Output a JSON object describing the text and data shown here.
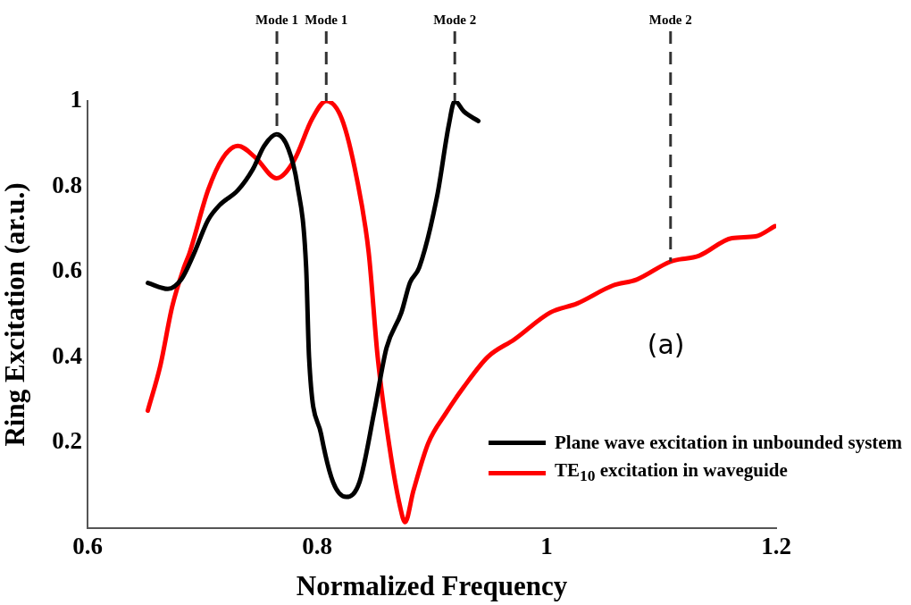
{
  "chart_data": {
    "type": "line",
    "xlabel": "Normalized Frequency",
    "ylabel": "Ring Excitation (ar.u.)",
    "xlim": [
      0.6,
      1.2
    ],
    "xticks": [
      0.6,
      0.8,
      1,
      1.2
    ],
    "ylim": [
      0,
      1
    ],
    "yticks": [
      0.2,
      0.4,
      0.6,
      0.8,
      1
    ],
    "grid": false,
    "legend": "bottom right",
    "marker": "none",
    "line_style": "solid",
    "annotations": [
      "(a)"
    ],
    "ref_lines": [
      {
        "axis": "x",
        "value": 0.765,
        "label": "Mode 1",
        "color": "#333333",
        "line_style": "dashed"
      },
      {
        "axis": "x",
        "value": 0.808,
        "label": "Mode 1",
        "color": "#333333",
        "line_style": "dashed"
      },
      {
        "axis": "x",
        "value": 0.92,
        "label": "Mode 2",
        "color": "#333333",
        "line_style": "dashed"
      },
      {
        "axis": "x",
        "value": 1.108,
        "label": "Mode 2",
        "color": "#333333",
        "line_style": "dashed"
      }
    ],
    "series": [
      {
        "name": "Plane wave excitation in unbounded system",
        "color": "#000000",
        "x": [
          0.6526,
          0.67,
          0.6816,
          0.692,
          0.705,
          0.715,
          0.731,
          0.744,
          0.754,
          0.7646,
          0.775,
          0.7827,
          0.7905,
          0.793,
          0.8035,
          0.8139,
          0.8255,
          0.837,
          0.85,
          0.8605,
          0.8735,
          0.881,
          0.889,
          0.9046,
          0.9148,
          0.92,
          0.928,
          0.9405
        ],
        "values": [
          0.574,
          0.56,
          0.582,
          0.638,
          0.721,
          0.756,
          0.791,
          0.84,
          0.895,
          0.922,
          0.888,
          0.805,
          0.61,
          0.401,
          0.22,
          0.108,
          0.073,
          0.108,
          0.275,
          0.422,
          0.505,
          0.575,
          0.61,
          0.777,
          0.944,
          1.0,
          0.975,
          0.953
        ]
      },
      {
        "name": "TE$_{10}$ excitation in waveguide",
        "color": "#ff0000",
        "x": [
          0.6525,
          0.6634,
          0.6738,
          0.684,
          0.689,
          0.705,
          0.718,
          0.731,
          0.7465,
          0.7646,
          0.78,
          0.7957,
          0.808,
          0.8216,
          0.8346,
          0.845,
          0.8528,
          0.863,
          0.8722,
          0.8767,
          0.8839,
          0.8969,
          0.9125,
          0.928,
          0.9488,
          0.972,
          1.0033,
          1.0266,
          1.0577,
          1.0785,
          1.108,
          1.133,
          1.1615,
          1.182,
          1.199
        ],
        "values": [
          0.275,
          0.38,
          0.519,
          0.61,
          0.645,
          0.791,
          0.867,
          0.895,
          0.867,
          0.819,
          0.861,
          0.958,
          1.0,
          0.958,
          0.819,
          0.645,
          0.401,
          0.192,
          0.052,
          0.014,
          0.087,
          0.199,
          0.27,
          0.331,
          0.401,
          0.442,
          0.505,
          0.526,
          0.568,
          0.582,
          0.624,
          0.638,
          0.679,
          0.683,
          0.707
        ]
      }
    ]
  }
}
